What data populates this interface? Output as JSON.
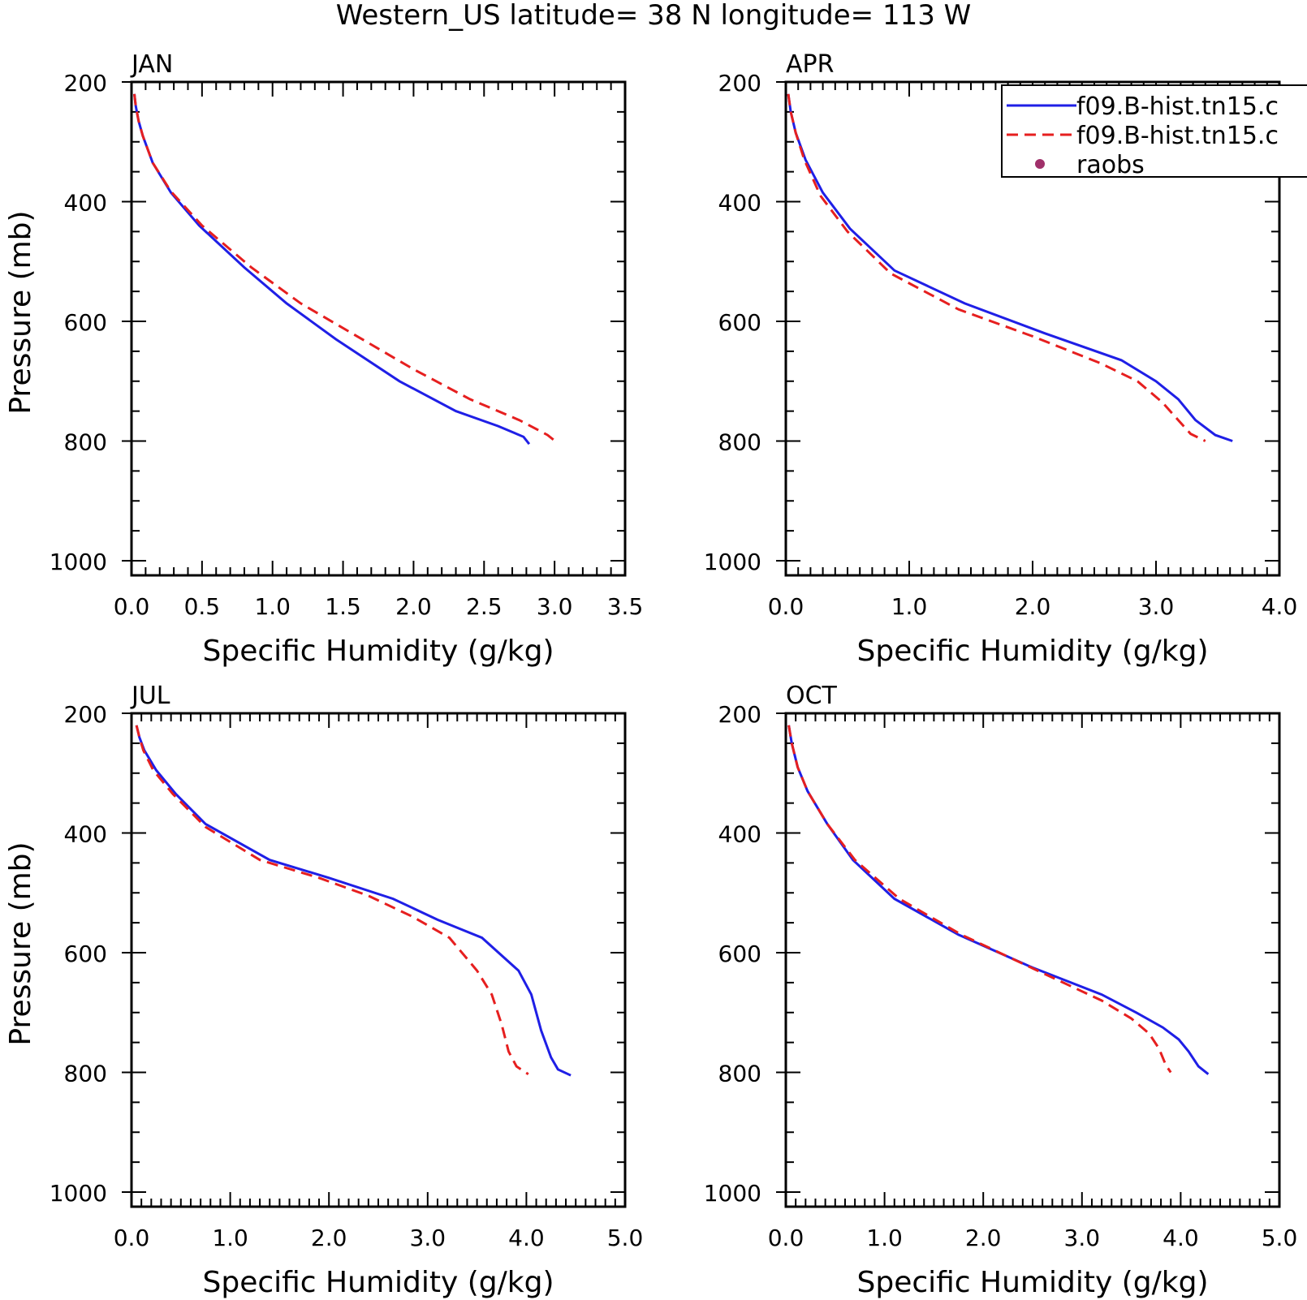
{
  "figure": {
    "title": "Western_US  latitude= 38 N longitude= 113 W"
  },
  "colors": {
    "series_1": "#1f1fe6",
    "series_2": "#e61f1f",
    "raobs": "#a0306a",
    "axes": "#000000"
  },
  "legend": {
    "placement": "top-right of APR panel",
    "entries": [
      {
        "label": "f09.B-hist.tn15.c",
        "style": "solid",
        "color_key": "series_1"
      },
      {
        "label": "f09.B-hist.tn15.c",
        "style": "dashed",
        "color_key": "series_2"
      },
      {
        "label": "raobs",
        "style": "dot",
        "color_key": "raobs"
      }
    ]
  },
  "chart_data": [
    {
      "type": "line",
      "title": "JAN",
      "xlabel": "Specific Humidity (g/kg)",
      "ylabel": "Pressure (mb)",
      "xlim": [
        0,
        3.5
      ],
      "ylim": [
        1000,
        200
      ],
      "xticks": [
        "0.0",
        "0.5",
        "1.0",
        "1.5",
        "2.0",
        "2.5",
        "3.0",
        "3.5"
      ],
      "yticks": [
        "200",
        "400",
        "600",
        "800",
        "1000"
      ],
      "series": [
        {
          "name": "f09.B-hist.tn15.c",
          "style": "solid",
          "color_key": "series_1",
          "points": [
            [
              0.02,
              220
            ],
            [
              0.03,
              240
            ],
            [
              0.05,
              265
            ],
            [
              0.08,
              290
            ],
            [
              0.15,
              335
            ],
            [
              0.28,
              385
            ],
            [
              0.48,
              440
            ],
            [
              0.8,
              510
            ],
            [
              1.1,
              570
            ],
            [
              1.45,
              630
            ],
            [
              1.9,
              700
            ],
            [
              2.3,
              750
            ],
            [
              2.6,
              775
            ],
            [
              2.78,
              793
            ],
            [
              2.82,
              805
            ]
          ]
        },
        {
          "name": "f09.B-hist.tn15.c",
          "style": "dashed",
          "color_key": "series_2",
          "points": [
            [
              0.02,
              220
            ],
            [
              0.03,
              240
            ],
            [
              0.05,
              265
            ],
            [
              0.08,
              290
            ],
            [
              0.15,
              335
            ],
            [
              0.28,
              383
            ],
            [
              0.5,
              440
            ],
            [
              0.85,
              510
            ],
            [
              1.2,
              570
            ],
            [
              1.6,
              625
            ],
            [
              2.0,
              680
            ],
            [
              2.4,
              730
            ],
            [
              2.75,
              765
            ],
            [
              2.95,
              790
            ],
            [
              3.02,
              803
            ]
          ]
        }
      ]
    },
    {
      "type": "line",
      "title": "APR",
      "xlabel": "Specific Humidity (g/kg)",
      "ylabel": "",
      "xlim": [
        0,
        4.0
      ],
      "ylim": [
        1000,
        200
      ],
      "xticks": [
        "0.0",
        "1.0",
        "2.0",
        "3.0",
        "4.0"
      ],
      "yticks": [
        "200",
        "400",
        "600",
        "800",
        "1000"
      ],
      "series": [
        {
          "name": "f09.B-hist.tn15.c",
          "style": "solid",
          "color_key": "series_1",
          "points": [
            [
              0.02,
              220
            ],
            [
              0.04,
              250
            ],
            [
              0.08,
              285
            ],
            [
              0.16,
              330
            ],
            [
              0.3,
              385
            ],
            [
              0.52,
              445
            ],
            [
              0.88,
              515
            ],
            [
              1.45,
              570
            ],
            [
              2.1,
              620
            ],
            [
              2.72,
              665
            ],
            [
              3.0,
              700
            ],
            [
              3.18,
              730
            ],
            [
              3.32,
              765
            ],
            [
              3.48,
              790
            ],
            [
              3.62,
              800
            ]
          ]
        },
        {
          "name": "f09.B-hist.tn15.c",
          "style": "dashed",
          "color_key": "series_2",
          "points": [
            [
              0.02,
              220
            ],
            [
              0.04,
              250
            ],
            [
              0.08,
              285
            ],
            [
              0.15,
              330
            ],
            [
              0.28,
              390
            ],
            [
              0.5,
              450
            ],
            [
              0.85,
              520
            ],
            [
              1.4,
              580
            ],
            [
              2.0,
              625
            ],
            [
              2.55,
              670
            ],
            [
              2.85,
              700
            ],
            [
              3.05,
              735
            ],
            [
              3.18,
              765
            ],
            [
              3.28,
              788
            ],
            [
              3.4,
              800
            ]
          ]
        }
      ]
    },
    {
      "type": "line",
      "title": "JUL",
      "xlabel": "Specific Humidity (g/kg)",
      "ylabel": "Pressure (mb)",
      "xlim": [
        0,
        5.0
      ],
      "ylim": [
        1000,
        200
      ],
      "xticks": [
        "0.0",
        "1.0",
        "2.0",
        "3.0",
        "4.0",
        "5.0"
      ],
      "yticks": [
        "200",
        "400",
        "600",
        "800",
        "1000"
      ],
      "series": [
        {
          "name": "f09.B-hist.tn15.c",
          "style": "solid",
          "color_key": "series_1",
          "points": [
            [
              0.05,
              220
            ],
            [
              0.08,
              240
            ],
            [
              0.13,
              262
            ],
            [
              0.25,
              295
            ],
            [
              0.45,
              335
            ],
            [
              0.75,
              385
            ],
            [
              1.4,
              445
            ],
            [
              2.0,
              475
            ],
            [
              2.65,
              510
            ],
            [
              3.1,
              545
            ],
            [
              3.55,
              575
            ],
            [
              3.92,
              630
            ],
            [
              4.05,
              670
            ],
            [
              4.15,
              730
            ],
            [
              4.25,
              775
            ],
            [
              4.32,
              795
            ],
            [
              4.45,
              805
            ]
          ]
        },
        {
          "name": "f09.B-hist.tn15.c",
          "style": "dashed",
          "color_key": "series_2",
          "points": [
            [
              0.05,
              220
            ],
            [
              0.08,
              240
            ],
            [
              0.12,
              262
            ],
            [
              0.22,
              295
            ],
            [
              0.42,
              335
            ],
            [
              0.75,
              390
            ],
            [
              1.3,
              445
            ],
            [
              1.9,
              475
            ],
            [
              2.4,
              505
            ],
            [
              2.85,
              540
            ],
            [
              3.22,
              575
            ],
            [
              3.5,
              630
            ],
            [
              3.65,
              670
            ],
            [
              3.75,
              720
            ],
            [
              3.82,
              765
            ],
            [
              3.9,
              790
            ],
            [
              4.02,
              803
            ]
          ]
        }
      ]
    },
    {
      "type": "line",
      "title": "OCT",
      "xlabel": "Specific Humidity (g/kg)",
      "ylabel": "",
      "xlim": [
        0,
        5.0
      ],
      "ylim": [
        1000,
        200
      ],
      "xticks": [
        "0.0",
        "1.0",
        "2.0",
        "3.0",
        "4.0",
        "5.0"
      ],
      "yticks": [
        "200",
        "400",
        "600",
        "800",
        "1000"
      ],
      "series": [
        {
          "name": "f09.B-hist.tn15.c",
          "style": "solid",
          "color_key": "series_1",
          "points": [
            [
              0.03,
              220
            ],
            [
              0.06,
              250
            ],
            [
              0.12,
              290
            ],
            [
              0.22,
              330
            ],
            [
              0.42,
              385
            ],
            [
              0.68,
              445
            ],
            [
              1.1,
              510
            ],
            [
              1.75,
              570
            ],
            [
              2.5,
              625
            ],
            [
              3.2,
              670
            ],
            [
              3.55,
              700
            ],
            [
              3.82,
              725
            ],
            [
              3.98,
              745
            ],
            [
              4.08,
              765
            ],
            [
              4.18,
              790
            ],
            [
              4.28,
              803
            ]
          ]
        },
        {
          "name": "f09.B-hist.tn15.c",
          "style": "dashed",
          "color_key": "series_2",
          "points": [
            [
              0.03,
              220
            ],
            [
              0.06,
              250
            ],
            [
              0.12,
              290
            ],
            [
              0.22,
              330
            ],
            [
              0.42,
              385
            ],
            [
              0.7,
              445
            ],
            [
              1.15,
              510
            ],
            [
              1.78,
              570
            ],
            [
              2.55,
              630
            ],
            [
              3.2,
              680
            ],
            [
              3.5,
              710
            ],
            [
              3.68,
              735
            ],
            [
              3.78,
              760
            ],
            [
              3.85,
              788
            ],
            [
              3.9,
              800
            ]
          ]
        }
      ]
    }
  ]
}
